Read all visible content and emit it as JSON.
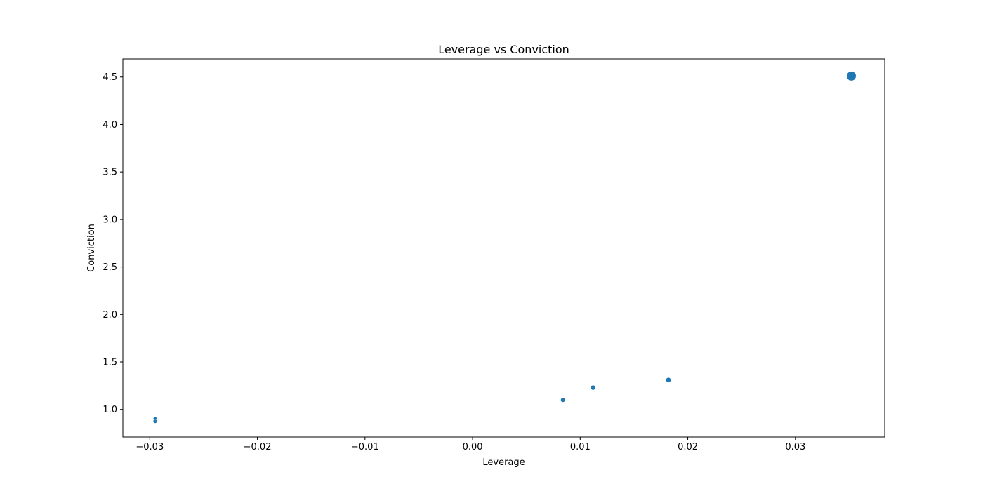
{
  "chart_data": {
    "type": "scatter",
    "title": "Leverage vs Conviction",
    "xlabel": "Leverage",
    "ylabel": "Conviction",
    "xlim": [
      -0.0325,
      0.0383
    ],
    "ylim": [
      0.71,
      4.69
    ],
    "xticks": [
      -0.03,
      -0.02,
      -0.01,
      0.0,
      0.01,
      0.02,
      0.03
    ],
    "xtick_labels": [
      "−0.03",
      "−0.02",
      "−0.01",
      "0.00",
      "0.01",
      "0.02",
      "0.03"
    ],
    "yticks": [
      1.0,
      1.5,
      2.0,
      2.5,
      3.0,
      3.5,
      4.0,
      4.5
    ],
    "ytick_labels": [
      "1.0",
      "1.5",
      "2.0",
      "2.5",
      "3.0",
      "3.5",
      "4.0",
      "4.5"
    ],
    "grid": false,
    "legend": "none",
    "color": "#1f77b4",
    "points": [
      {
        "x": -0.0295,
        "y": 0.9,
        "size": 0.9
      },
      {
        "x": -0.0295,
        "y": 0.875,
        "size": 0.85
      },
      {
        "x": 0.0084,
        "y": 1.1,
        "size": 1.1
      },
      {
        "x": 0.0112,
        "y": 1.23,
        "size": 1.25
      },
      {
        "x": 0.0182,
        "y": 1.31,
        "size": 1.35
      },
      {
        "x": 0.0352,
        "y": 4.51,
        "size": 4.5
      }
    ]
  }
}
